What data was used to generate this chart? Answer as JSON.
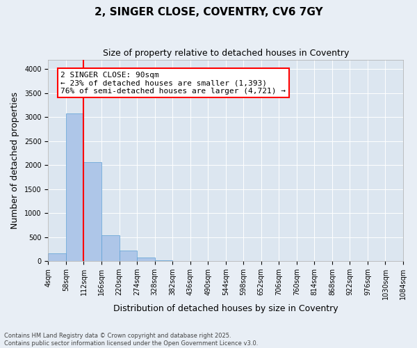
{
  "title": "2, SINGER CLOSE, COVENTRY, CV6 7GY",
  "subtitle": "Size of property relative to detached houses in Coventry",
  "xlabel": "Distribution of detached houses by size in Coventry",
  "ylabel": "Number of detached properties",
  "footer_line1": "Contains HM Land Registry data © Crown copyright and database right 2025.",
  "footer_line2": "Contains public sector information licensed under the Open Government Licence v3.0.",
  "bin_labels": [
    "4sqm",
    "58sqm",
    "112sqm",
    "166sqm",
    "220sqm",
    "274sqm",
    "328sqm",
    "382sqm",
    "436sqm",
    "490sqm",
    "544sqm",
    "598sqm",
    "652sqm",
    "706sqm",
    "760sqm",
    "814sqm",
    "868sqm",
    "922sqm",
    "976sqm",
    "1030sqm",
    "1084sqm"
  ],
  "bar_values": [
    160,
    3080,
    2060,
    540,
    220,
    70,
    20,
    5,
    2,
    1,
    0,
    0,
    0,
    0,
    0,
    0,
    0,
    0,
    0,
    0
  ],
  "bar_color": "#aec6e8",
  "bar_edge_color": "#5a9fd4",
  "vline_color": "red",
  "annotation_text": "2 SINGER CLOSE: 90sqm\n← 23% of detached houses are smaller (1,393)\n76% of semi-detached houses are larger (4,721) →",
  "annotation_fontsize": 8,
  "ylim": [
    0,
    4200
  ],
  "yticks": [
    0,
    500,
    1000,
    1500,
    2000,
    2500,
    3000,
    3500,
    4000
  ],
  "bg_color": "#e8eef5",
  "plot_bg_color": "#dce6f0",
  "title_fontsize": 11,
  "subtitle_fontsize": 9,
  "xlabel_fontsize": 9,
  "ylabel_fontsize": 9,
  "tick_fontsize": 7
}
